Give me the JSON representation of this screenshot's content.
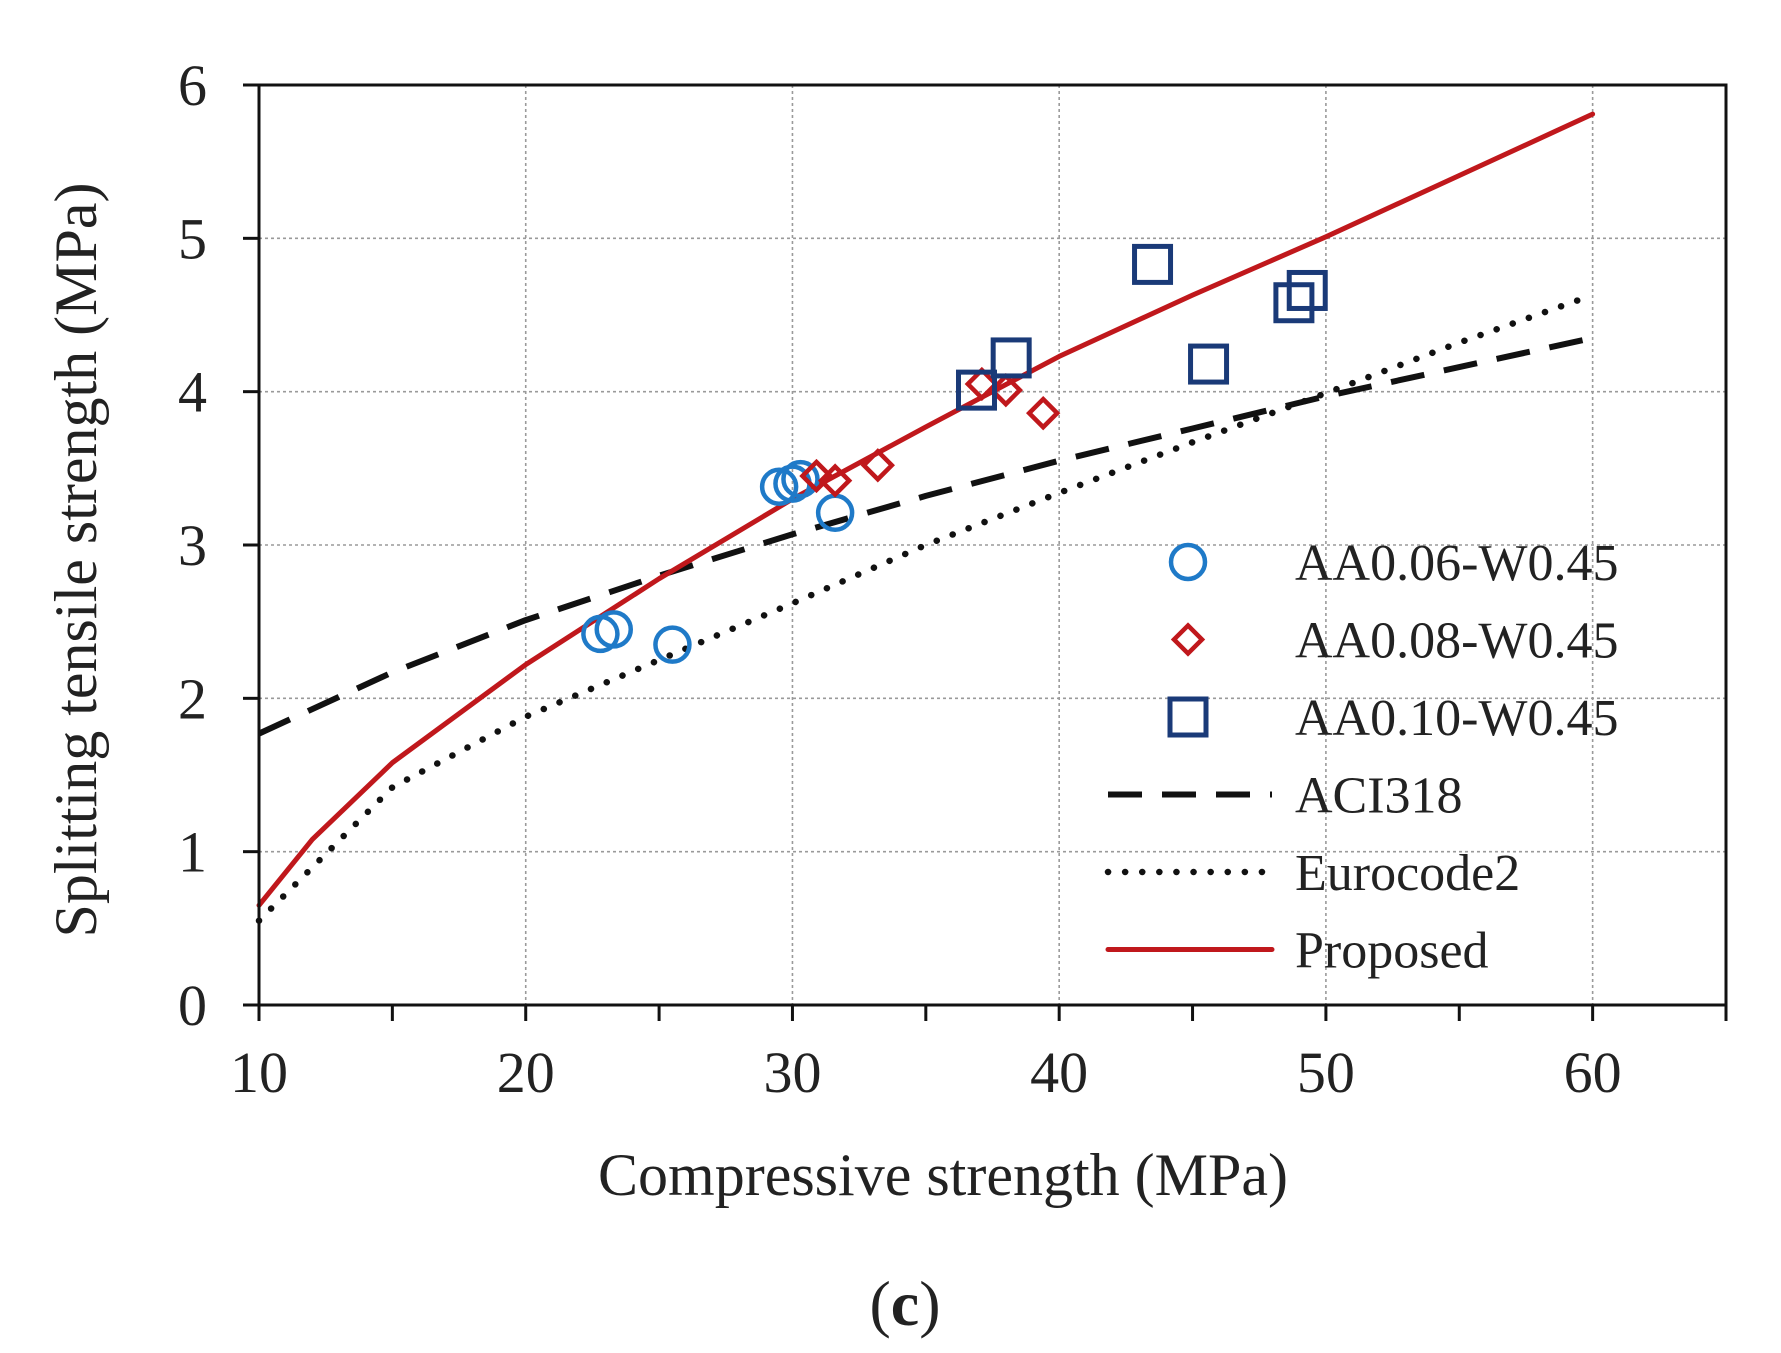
{
  "chart_data": {
    "type": "scatter",
    "panel_label": {
      "open": "(",
      "letter": "c",
      "close": ")"
    },
    "title": "",
    "xlabel": "Compressive strength (MPa)",
    "ylabel": "Splitting tensile strength (MPa)",
    "xlim": [
      10,
      65
    ],
    "ylim": [
      0,
      6
    ],
    "x_major_ticks": [
      10,
      20,
      30,
      40,
      50,
      60
    ],
    "x_minor_ticks": [
      15,
      25,
      35,
      45,
      55,
      65
    ],
    "y_ticks": [
      0,
      1,
      2,
      3,
      4,
      5,
      6
    ],
    "grid": true,
    "legend_position": "bottom-right",
    "colors": {
      "aa006": "#1f7ac8",
      "aa008": "#c0181c",
      "aa010": "#1a3a78",
      "aci": "#111111",
      "euro": "#111111",
      "proposed": "#c0181c",
      "grid": "#9a9a9a",
      "axis": "#111111"
    },
    "series": [
      {
        "name": "AA0.06-W0.45",
        "kind": "scatter",
        "marker": "circle",
        "color": "#1f7ac8",
        "points": [
          [
            22.8,
            2.42
          ],
          [
            23.3,
            2.45
          ],
          [
            25.5,
            2.35
          ],
          [
            29.5,
            3.38
          ],
          [
            30.0,
            3.4
          ],
          [
            30.3,
            3.43
          ],
          [
            31.6,
            3.21
          ]
        ]
      },
      {
        "name": "AA0.08-W0.45",
        "kind": "scatter",
        "marker": "diamond",
        "color": "#c0181c",
        "points": [
          [
            30.9,
            3.45
          ],
          [
            31.6,
            3.42
          ],
          [
            33.2,
            3.52
          ],
          [
            37.1,
            4.05
          ],
          [
            38.0,
            4.01
          ],
          [
            39.4,
            3.86
          ]
        ]
      },
      {
        "name": "AA0.10-W0.45",
        "kind": "scatter",
        "marker": "square",
        "color": "#1a3a78",
        "points": [
          [
            36.9,
            4.01
          ],
          [
            38.2,
            4.22
          ],
          [
            43.5,
            4.83
          ],
          [
            45.6,
            4.18
          ],
          [
            48.8,
            4.58
          ],
          [
            49.3,
            4.66
          ]
        ]
      },
      {
        "name": "ACI318",
        "kind": "line",
        "style": "dashed",
        "color": "#111111",
        "x": [
          10,
          15,
          20,
          25,
          30,
          35,
          40,
          45,
          50,
          55,
          60
        ],
        "y": [
          1.77,
          2.17,
          2.51,
          2.8,
          3.07,
          3.32,
          3.55,
          3.76,
          3.97,
          4.16,
          4.35
        ]
      },
      {
        "name": "Eurocode2",
        "kind": "line",
        "style": "dotted",
        "color": "#111111",
        "x": [
          10,
          15,
          20,
          25,
          30,
          35,
          40,
          45,
          50,
          55,
          60
        ],
        "y": [
          0.55,
          1.42,
          1.88,
          2.25,
          2.62,
          3.0,
          3.34,
          3.67,
          3.99,
          4.32,
          4.63
        ]
      },
      {
        "name": "Proposed",
        "kind": "line",
        "style": "solid",
        "color": "#c0181c",
        "x": [
          10,
          12,
          15,
          20,
          25,
          30,
          35,
          40,
          45,
          50,
          55,
          60
        ],
        "y": [
          0.65,
          1.08,
          1.58,
          2.22,
          2.78,
          3.3,
          3.77,
          4.23,
          4.63,
          5.01,
          5.41,
          5.81
        ]
      }
    ]
  }
}
